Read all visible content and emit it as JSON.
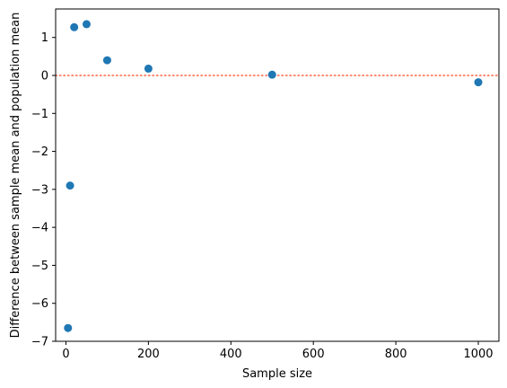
{
  "chart_data": {
    "type": "scatter",
    "title": "",
    "xlabel": "Sample size",
    "ylabel": "Difference between sample mean and population mean",
    "xlim": [
      -25,
      1050
    ],
    "ylim": [
      -7.0,
      1.75
    ],
    "xticks": [
      0,
      200,
      400,
      600,
      800,
      1000
    ],
    "yticks": [
      -7,
      -6,
      -5,
      -4,
      -3,
      -2,
      -1,
      0,
      1
    ],
    "grid": false,
    "legend": "none",
    "series": [
      {
        "color": "#1f77b4",
        "points": [
          {
            "x": 5,
            "y": -6.65
          },
          {
            "x": 10,
            "y": -2.9
          },
          {
            "x": 20,
            "y": 1.27
          },
          {
            "x": 50,
            "y": 1.35
          },
          {
            "x": 100,
            "y": 0.4
          },
          {
            "x": 200,
            "y": 0.18
          },
          {
            "x": 500,
            "y": 0.02
          },
          {
            "x": 1000,
            "y": -0.18
          }
        ]
      }
    ],
    "reference_line": {
      "y": 0,
      "color": "#ff6347",
      "style": "dotted"
    }
  }
}
